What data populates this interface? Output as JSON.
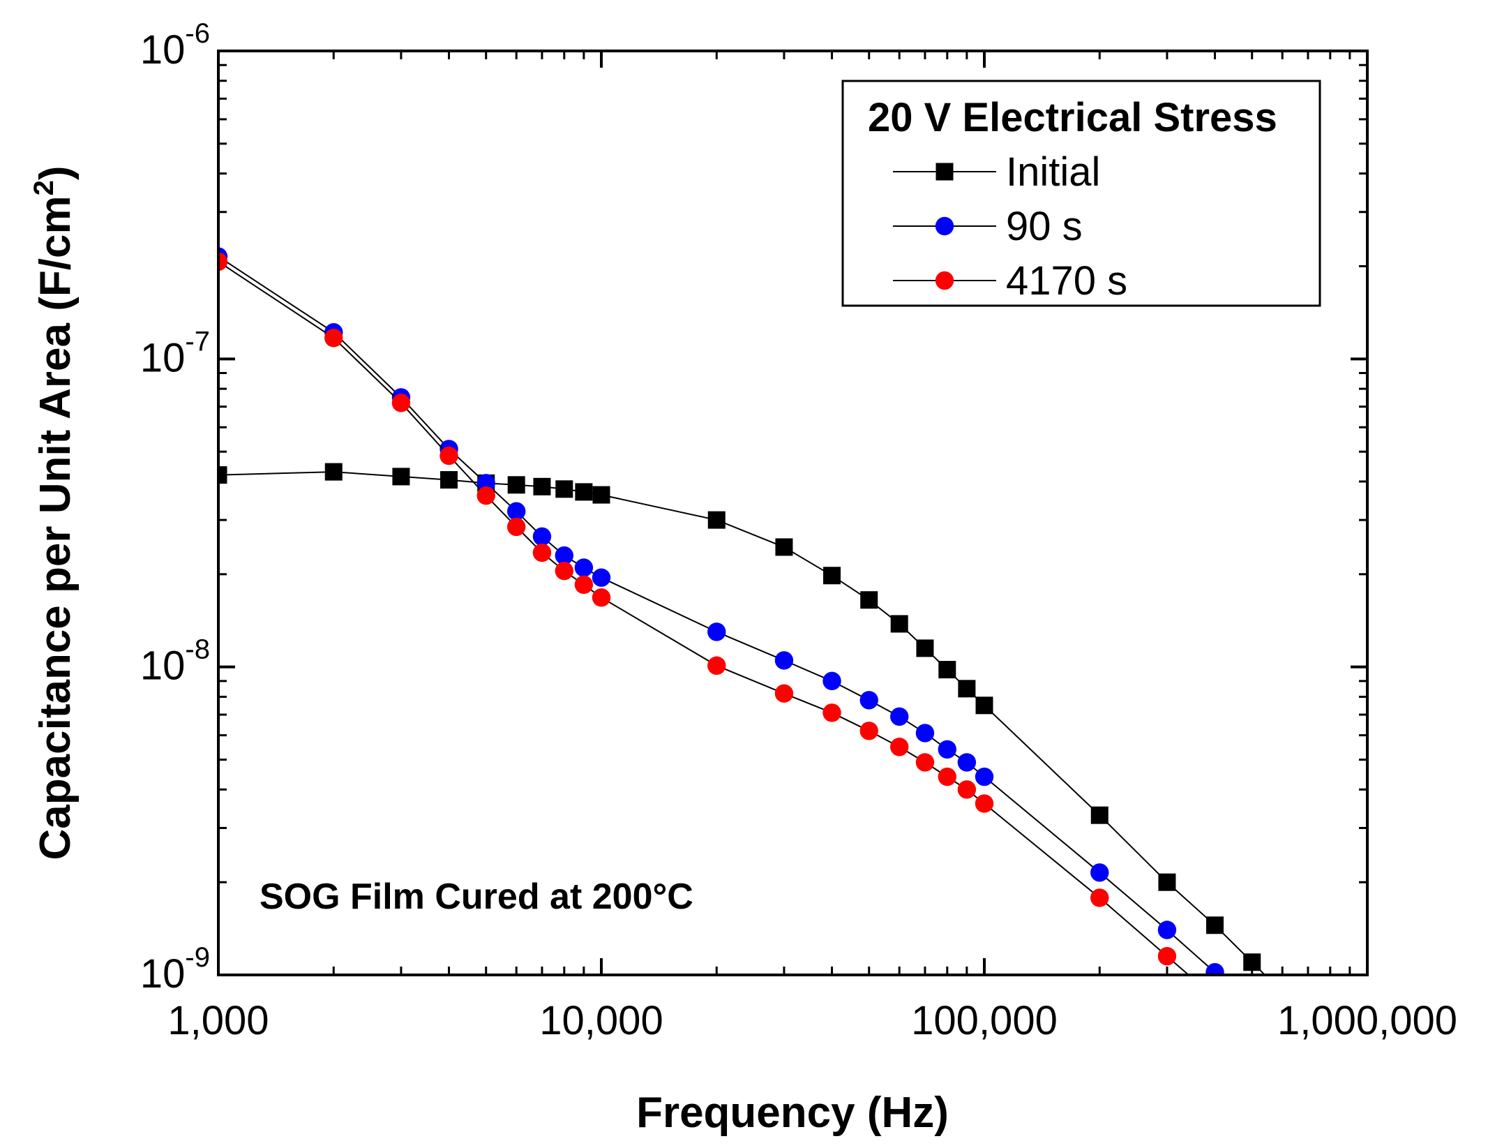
{
  "chart_data": {
    "type": "scatter",
    "title": "",
    "xlabel": "Frequency (Hz)",
    "ylabel": "Capacitance per Unit Area (F/cm²)",
    "ylabel_main": "Capacitance per Unit Area (F/cm",
    "ylabel_sup": "2",
    "ylabel_close": ")",
    "xscale": "log",
    "yscale": "log",
    "xlim": [
      1000,
      1000000
    ],
    "ylim": [
      1e-09,
      1e-06
    ],
    "x_ticks": [
      {
        "value": 1000,
        "label": "1,000"
      },
      {
        "value": 10000,
        "label": "10,000"
      },
      {
        "value": 100000,
        "label": "100,000"
      },
      {
        "value": 1000000,
        "label": "1,000,000"
      }
    ],
    "y_ticks": [
      {
        "value": 1e-09,
        "base": "10",
        "exp": "-9"
      },
      {
        "value": 1e-08,
        "base": "10",
        "exp": "-8"
      },
      {
        "value": 1e-07,
        "base": "10",
        "exp": "-7"
      },
      {
        "value": 1e-06,
        "base": "10",
        "exp": "-6"
      }
    ],
    "legend": {
      "title": "20 V Electrical Stress",
      "position": "top-right"
    },
    "annotation": "SOG Film Cured at 200°C",
    "series": [
      {
        "name": "Initial",
        "marker": "square",
        "color": "#000000",
        "x": [
          1000,
          2000,
          3000,
          4000,
          5000,
          6000,
          7000,
          8000,
          9000,
          10000,
          20000,
          30000,
          40000,
          50000,
          60000,
          70000,
          80000,
          90000,
          100000,
          200000,
          300000,
          400000,
          500000
        ],
        "y": [
          4.2e-08,
          4.3e-08,
          4.15e-08,
          4.05e-08,
          3.95e-08,
          3.9e-08,
          3.85e-08,
          3.78e-08,
          3.7e-08,
          3.62e-08,
          3e-08,
          2.45e-08,
          1.98e-08,
          1.65e-08,
          1.38e-08,
          1.15e-08,
          9.8e-09,
          8.5e-09,
          7.5e-09,
          3.3e-09,
          2e-09,
          1.45e-09,
          1.1e-09
        ]
      },
      {
        "name": "90 s",
        "marker": "circle",
        "color": "#0000ff",
        "x": [
          1000,
          2000,
          3000,
          4000,
          5000,
          6000,
          7000,
          8000,
          9000,
          10000,
          20000,
          30000,
          40000,
          50000,
          60000,
          70000,
          80000,
          90000,
          100000,
          200000,
          300000,
          400000
        ],
        "y": [
          2.15e-07,
          1.22e-07,
          7.5e-08,
          5.1e-08,
          3.95e-08,
          3.2e-08,
          2.65e-08,
          2.3e-08,
          2.1e-08,
          1.95e-08,
          1.3e-08,
          1.05e-08,
          9e-09,
          7.8e-09,
          6.9e-09,
          6.1e-09,
          5.4e-09,
          4.9e-09,
          4.4e-09,
          2.15e-09,
          1.4e-09,
          1.02e-09
        ]
      },
      {
        "name": "4170 s",
        "marker": "circle",
        "color": "#ff0000",
        "x": [
          1000,
          2000,
          3000,
          4000,
          5000,
          6000,
          7000,
          8000,
          9000,
          10000,
          20000,
          30000,
          40000,
          50000,
          60000,
          70000,
          80000,
          90000,
          100000,
          200000,
          300000
        ],
        "y": [
          2.07e-07,
          1.17e-07,
          7.2e-08,
          4.85e-08,
          3.6e-08,
          2.85e-08,
          2.35e-08,
          2.05e-08,
          1.85e-08,
          1.68e-08,
          1.01e-08,
          8.2e-09,
          7.1e-09,
          6.2e-09,
          5.5e-09,
          4.9e-09,
          4.4e-09,
          4e-09,
          3.6e-09,
          1.78e-09,
          1.15e-09
        ]
      }
    ]
  }
}
